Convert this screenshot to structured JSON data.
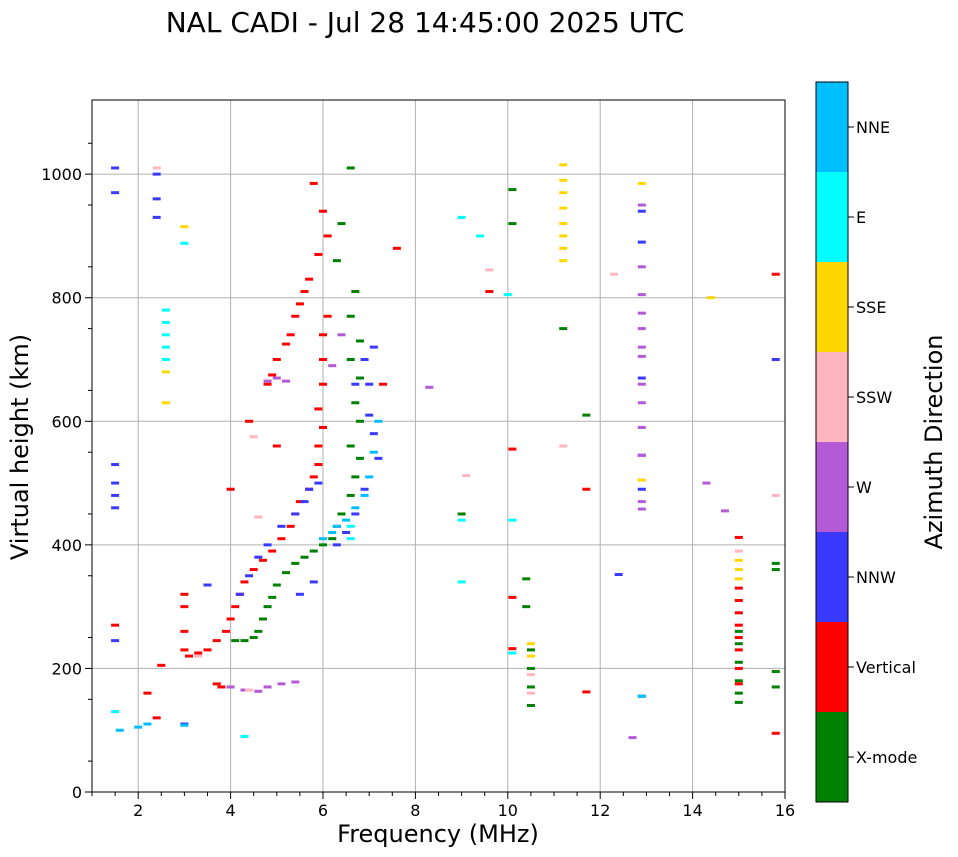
{
  "chart_data": {
    "type": "scatter",
    "title": "NAL CADI - Jul 28 14:45:00 2025 UTC",
    "xlabel": "Frequency (MHz)",
    "ylabel": "Virtual height (km)",
    "xlim": [
      1,
      16
    ],
    "ylim": [
      0,
      1120
    ],
    "xticks": [
      2,
      4,
      6,
      8,
      10,
      12,
      14,
      16
    ],
    "yticks": [
      0,
      200,
      400,
      600,
      800,
      1000
    ],
    "grid": true,
    "colorbar": {
      "label": "Azimuth Direction",
      "categories": [
        {
          "name": "X-mode",
          "color": "#008000"
        },
        {
          "name": "Vertical",
          "color": "#ff0000"
        },
        {
          "name": "NNW",
          "color": "#3a3aff"
        },
        {
          "name": "W",
          "color": "#b55ad6"
        },
        {
          "name": "SSW",
          "color": "#ffb6c1"
        },
        {
          "name": "SSE",
          "color": "#ffd700"
        },
        {
          "name": "E",
          "color": "#00ffff"
        },
        {
          "name": "NNE",
          "color": "#00bfff"
        }
      ]
    },
    "series": [
      {
        "name": "X-mode",
        "points": [
          [
            6.6,
            1010
          ],
          [
            6.4,
            920
          ],
          [
            6.3,
            860
          ],
          [
            6.7,
            810
          ],
          [
            6.6,
            770
          ],
          [
            6.8,
            730
          ],
          [
            6.6,
            700
          ],
          [
            6.8,
            670
          ],
          [
            6.7,
            630
          ],
          [
            6.8,
            600
          ],
          [
            6.6,
            560
          ],
          [
            6.8,
            540
          ],
          [
            6.7,
            510
          ],
          [
            6.6,
            480
          ],
          [
            6.4,
            450
          ],
          [
            6.3,
            430
          ],
          [
            6.2,
            410
          ],
          [
            6.0,
            400
          ],
          [
            5.8,
            390
          ],
          [
            5.6,
            380
          ],
          [
            5.4,
            370
          ],
          [
            5.2,
            355
          ],
          [
            5.0,
            335
          ],
          [
            4.9,
            315
          ],
          [
            4.8,
            300
          ],
          [
            4.7,
            280
          ],
          [
            4.6,
            260
          ],
          [
            4.5,
            250
          ],
          [
            4.3,
            245
          ],
          [
            4.1,
            245
          ],
          [
            10.1,
            975
          ],
          [
            10.1,
            920
          ],
          [
            11.2,
            750
          ],
          [
            11.7,
            610
          ],
          [
            10.4,
            345
          ],
          [
            10.4,
            300
          ],
          [
            9.0,
            450
          ],
          [
            10.5,
            230
          ],
          [
            10.5,
            200
          ],
          [
            10.5,
            170
          ],
          [
            10.5,
            140
          ],
          [
            15.0,
            260
          ],
          [
            15.0,
            240
          ],
          [
            15.0,
            210
          ],
          [
            15.0,
            180
          ],
          [
            15.0,
            160
          ],
          [
            15.0,
            145
          ],
          [
            15.8,
            370
          ],
          [
            15.8,
            360
          ],
          [
            15.8,
            195
          ],
          [
            15.8,
            170
          ]
        ]
      },
      {
        "name": "Vertical",
        "points": [
          [
            5.8,
            985
          ],
          [
            6.0,
            940
          ],
          [
            6.1,
            900
          ],
          [
            5.9,
            870
          ],
          [
            5.7,
            830
          ],
          [
            5.6,
            810
          ],
          [
            5.5,
            790
          ],
          [
            5.4,
            770
          ],
          [
            5.3,
            740
          ],
          [
            5.2,
            725
          ],
          [
            5.0,
            700
          ],
          [
            4.9,
            675
          ],
          [
            4.8,
            660
          ],
          [
            6.1,
            770
          ],
          [
            6.0,
            740
          ],
          [
            6.0,
            700
          ],
          [
            6.0,
            660
          ],
          [
            5.9,
            620
          ],
          [
            6.0,
            590
          ],
          [
            5.9,
            560
          ],
          [
            5.9,
            530
          ],
          [
            5.8,
            510
          ],
          [
            5.7,
            490
          ],
          [
            5.5,
            470
          ],
          [
            5.4,
            450
          ],
          [
            5.3,
            430
          ],
          [
            5.1,
            410
          ],
          [
            4.9,
            390
          ],
          [
            4.7,
            375
          ],
          [
            4.5,
            360
          ],
          [
            4.3,
            340
          ],
          [
            4.2,
            320
          ],
          [
            4.1,
            300
          ],
          [
            4.0,
            280
          ],
          [
            3.9,
            260
          ],
          [
            3.7,
            245
          ],
          [
            3.5,
            230
          ],
          [
            3.3,
            225
          ],
          [
            3.1,
            220
          ],
          [
            3.0,
            230
          ],
          [
            3.0,
            260
          ],
          [
            3.0,
            300
          ],
          [
            3.0,
            320
          ],
          [
            3.7,
            175
          ],
          [
            3.8,
            170
          ],
          [
            4.0,
            490
          ],
          [
            4.4,
            600
          ],
          [
            5.0,
            560
          ],
          [
            7.6,
            880
          ],
          [
            9.6,
            810
          ],
          [
            10.1,
            555
          ],
          [
            10.1,
            315
          ],
          [
            10.1,
            232
          ],
          [
            11.7,
            490
          ],
          [
            11.7,
            162
          ],
          [
            15.0,
            330
          ],
          [
            15.0,
            310
          ],
          [
            15.0,
            290
          ],
          [
            15.0,
            270
          ],
          [
            15.0,
            250
          ],
          [
            15.0,
            230
          ],
          [
            15.0,
            200
          ],
          [
            15.0,
            175
          ],
          [
            15.0,
            412
          ],
          [
            15.8,
            838
          ],
          [
            15.8,
            95
          ],
          [
            1.5,
            270
          ],
          [
            2.2,
            160
          ],
          [
            2.5,
            205
          ],
          [
            2.4,
            120
          ],
          [
            7.3,
            660
          ]
        ]
      },
      {
        "name": "NNW",
        "points": [
          [
            1.5,
            1010
          ],
          [
            1.5,
            970
          ],
          [
            1.5,
            530
          ],
          [
            1.5,
            500
          ],
          [
            1.5,
            480
          ],
          [
            1.5,
            460
          ],
          [
            1.5,
            245
          ],
          [
            2.4,
            1000
          ],
          [
            2.4,
            960
          ],
          [
            2.4,
            930
          ],
          [
            6.7,
            660
          ],
          [
            6.9,
            700
          ],
          [
            7.1,
            720
          ],
          [
            7.0,
            660
          ],
          [
            7.0,
            610
          ],
          [
            7.1,
            580
          ],
          [
            7.2,
            540
          ],
          [
            6.9,
            490
          ],
          [
            6.7,
            450
          ],
          [
            6.5,
            420
          ],
          [
            6.3,
            400
          ],
          [
            5.9,
            500
          ],
          [
            5.7,
            490
          ],
          [
            5.6,
            470
          ],
          [
            5.4,
            450
          ],
          [
            5.1,
            430
          ],
          [
            4.8,
            400
          ],
          [
            4.6,
            380
          ],
          [
            4.4,
            350
          ],
          [
            4.2,
            320
          ],
          [
            5.5,
            320
          ],
          [
            5.8,
            340
          ],
          [
            3.5,
            335
          ],
          [
            3.0,
            110
          ],
          [
            12.9,
            940
          ],
          [
            12.9,
            890
          ],
          [
            12.9,
            670
          ],
          [
            12.9,
            545
          ],
          [
            12.9,
            490
          ],
          [
            12.4,
            352
          ],
          [
            12.9,
            155
          ],
          [
            15.8,
            700
          ]
        ]
      },
      {
        "name": "W",
        "points": [
          [
            4.8,
            665
          ],
          [
            5.0,
            670
          ],
          [
            5.2,
            665
          ],
          [
            4.0,
            170
          ],
          [
            4.3,
            165
          ],
          [
            4.6,
            163
          ],
          [
            4.8,
            170
          ],
          [
            5.1,
            175
          ],
          [
            5.4,
            178
          ],
          [
            12.9,
            950
          ],
          [
            12.9,
            850
          ],
          [
            12.9,
            805
          ],
          [
            12.9,
            775
          ],
          [
            12.9,
            750
          ],
          [
            12.9,
            720
          ],
          [
            12.9,
            705
          ],
          [
            12.9,
            660
          ],
          [
            12.9,
            630
          ],
          [
            12.9,
            590
          ],
          [
            12.9,
            545
          ],
          [
            12.9,
            470
          ],
          [
            12.9,
            458
          ],
          [
            12.7,
            88
          ],
          [
            8.3,
            655
          ],
          [
            14.3,
            500
          ],
          [
            14.7,
            455
          ],
          [
            6.4,
            740
          ],
          [
            6.2,
            690
          ]
        ]
      },
      {
        "name": "SSW",
        "points": [
          [
            2.4,
            1010
          ],
          [
            4.6,
            445
          ],
          [
            4.5,
            575
          ],
          [
            11.2,
            560
          ],
          [
            12.3,
            838
          ],
          [
            9.1,
            512
          ],
          [
            15.0,
            390
          ],
          [
            15.8,
            480
          ],
          [
            10.5,
            190
          ],
          [
            10.5,
            160
          ],
          [
            4.4,
            165
          ],
          [
            3.3,
            220
          ],
          [
            9.6,
            845
          ]
        ]
      },
      {
        "name": "SSE",
        "points": [
          [
            11.2,
            1015
          ],
          [
            11.2,
            990
          ],
          [
            11.2,
            970
          ],
          [
            11.2,
            945
          ],
          [
            11.2,
            920
          ],
          [
            11.2,
            900
          ],
          [
            11.2,
            880
          ],
          [
            11.2,
            860
          ],
          [
            14.4,
            800
          ],
          [
            12.9,
            985
          ],
          [
            12.9,
            505
          ],
          [
            15.0,
            375
          ],
          [
            15.0,
            360
          ],
          [
            15.0,
            345
          ],
          [
            10.5,
            240
          ],
          [
            10.5,
            220
          ],
          [
            2.6,
            680
          ],
          [
            2.6,
            630
          ],
          [
            3.0,
            915
          ]
        ]
      },
      {
        "name": "E",
        "points": [
          [
            2.6,
            780
          ],
          [
            2.6,
            760
          ],
          [
            2.6,
            740
          ],
          [
            2.6,
            720
          ],
          [
            2.6,
            700
          ],
          [
            9.0,
            930
          ],
          [
            9.0,
            440
          ],
          [
            9.0,
            340
          ],
          [
            9.4,
            900
          ],
          [
            10.0,
            805
          ],
          [
            10.1,
            440
          ],
          [
            10.1,
            225
          ],
          [
            3.0,
            888
          ],
          [
            4.3,
            90
          ],
          [
            1.5,
            130
          ],
          [
            6.6,
            430
          ],
          [
            6.6,
            410
          ]
        ]
      },
      {
        "name": "NNE",
        "points": [
          [
            6.5,
            440
          ],
          [
            6.7,
            460
          ],
          [
            6.9,
            480
          ],
          [
            7.0,
            510
          ],
          [
            7.1,
            550
          ],
          [
            7.2,
            600
          ],
          [
            6.3,
            430
          ],
          [
            6.2,
            420
          ],
          [
            6.0,
            410
          ],
          [
            12.9,
            155
          ],
          [
            1.6,
            100
          ],
          [
            2.2,
            110
          ],
          [
            2.0,
            105
          ],
          [
            3.0,
            108
          ]
        ]
      }
    ]
  }
}
